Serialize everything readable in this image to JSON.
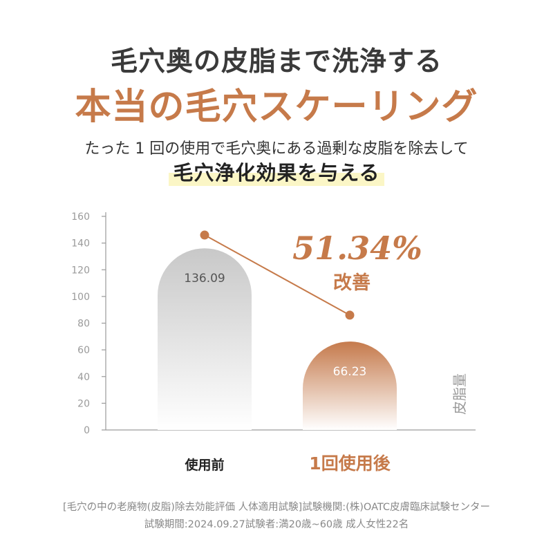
{
  "heading": {
    "line1": "毛穴奥の皮脂まで洗浄する",
    "line2": "本当の毛穴スケーリング"
  },
  "subheading": {
    "line1": "たった 1 回の使用で毛穴奥にある過剰な皮脂を除去して",
    "line2": "毛穴浄化効果を与える"
  },
  "colors": {
    "accent": "#c67a4a",
    "before_bar_top": "#c8c8c8",
    "after_bar_top": "#c57a4c",
    "highlight": "#fbf6c6"
  },
  "chart_data": {
    "type": "bar",
    "categories": [
      "使用前",
      "1回使用後"
    ],
    "values": [
      136.09,
      66.23
    ],
    "value_labels": [
      "136.09",
      "66.23"
    ],
    "ylim": [
      0,
      160
    ],
    "yticks": [
      0,
      20,
      40,
      60,
      80,
      100,
      120,
      140,
      160
    ],
    "ylabel": "皮脂量",
    "xlabel": "",
    "title": "",
    "grid": false,
    "trend_line": {
      "points": [
        146,
        86
      ]
    },
    "annotation": {
      "value": "51.34%",
      "label": "改善"
    }
  },
  "footnote": {
    "line1": "[毛穴の中の老廃物(皮脂)除去効能評価 人体適用試験]試験機関:(株)OATC皮膚臨床試験センター",
    "line2": "試験期間:2024.09.27試験者:満20歳~60歳 成人女性22名"
  }
}
